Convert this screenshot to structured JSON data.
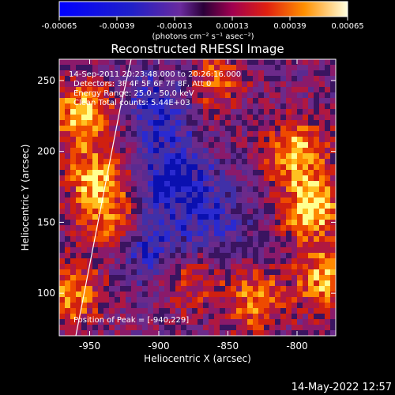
{
  "colorbar": {
    "ticks": [
      {
        "value": -0.00065,
        "label": "-0.00065"
      },
      {
        "value": -0.00039,
        "label": "-0.00039"
      },
      {
        "value": -0.00013,
        "label": "-0.00013"
      },
      {
        "value": 0.00013,
        "label": "0.00013"
      },
      {
        "value": 0.00039,
        "label": "0.00039"
      },
      {
        "value": 0.00065,
        "label": "0.00065"
      }
    ],
    "range": [
      -0.00065,
      0.00065
    ],
    "units_label": "(photons cm⁻² s⁻¹ asec⁻²)"
  },
  "chart_data": {
    "type": "heatmap",
    "title": "Reconstructed RHESSI Image",
    "xlabel": "Heliocentric X (arcsec)",
    "ylabel": "Heliocentric Y (arcsec)",
    "xlim": [
      -972,
      -772
    ],
    "ylim": [
      70,
      265
    ],
    "xticks": [
      {
        "value": -950,
        "label": "-950"
      },
      {
        "value": -900,
        "label": "-900"
      },
      {
        "value": -850,
        "label": "-850"
      },
      {
        "value": -800,
        "label": "-800"
      }
    ],
    "yticks": [
      {
        "value": 100,
        "label": "100"
      },
      {
        "value": 150,
        "label": "150"
      },
      {
        "value": 200,
        "label": "200"
      },
      {
        "value": 250,
        "label": "250"
      }
    ],
    "annotations": [
      "14-Sep-2011 20:23:48.000 to 20:26:16.000",
      "Detectors: 3F 4F 5F 6F 7F 8F, Att 0",
      "Energy Range: 25.0 - 50.0 keV",
      "Clean    Total counts: 5.44E+03"
    ],
    "peak_label": "Position of Peak = [-940,229]",
    "limb_points": [
      [
        -960,
        70
      ],
      [
        -952,
        110
      ],
      [
        -944,
        150
      ],
      [
        -936,
        190
      ],
      [
        -928,
        230
      ],
      [
        -920,
        265
      ]
    ],
    "bright_regions": [
      {
        "x": -955,
        "y": 225,
        "level": 0.95
      },
      {
        "x": -945,
        "y": 180,
        "level": 0.8
      },
      {
        "x": -962,
        "y": 100,
        "level": 0.7
      },
      {
        "x": -935,
        "y": 150,
        "level": 0.6
      },
      {
        "x": -790,
        "y": 160,
        "level": 0.95
      },
      {
        "x": -800,
        "y": 200,
        "level": 0.85
      },
      {
        "x": -780,
        "y": 110,
        "level": 0.8
      },
      {
        "x": -830,
        "y": 95,
        "level": 0.65
      },
      {
        "x": -860,
        "y": 250,
        "level": 0.55
      },
      {
        "x": -880,
        "y": 110,
        "level": 0.5
      }
    ],
    "dim_regions": [
      {
        "x": -890,
        "y": 180,
        "level": 0.75
      },
      {
        "x": -900,
        "y": 230,
        "level": 0.6
      },
      {
        "x": -905,
        "y": 130,
        "level": 0.55
      },
      {
        "x": -860,
        "y": 150,
        "level": 0.45
      }
    ]
  },
  "footer": {
    "timestamp": "14-May-2022 12:57"
  }
}
